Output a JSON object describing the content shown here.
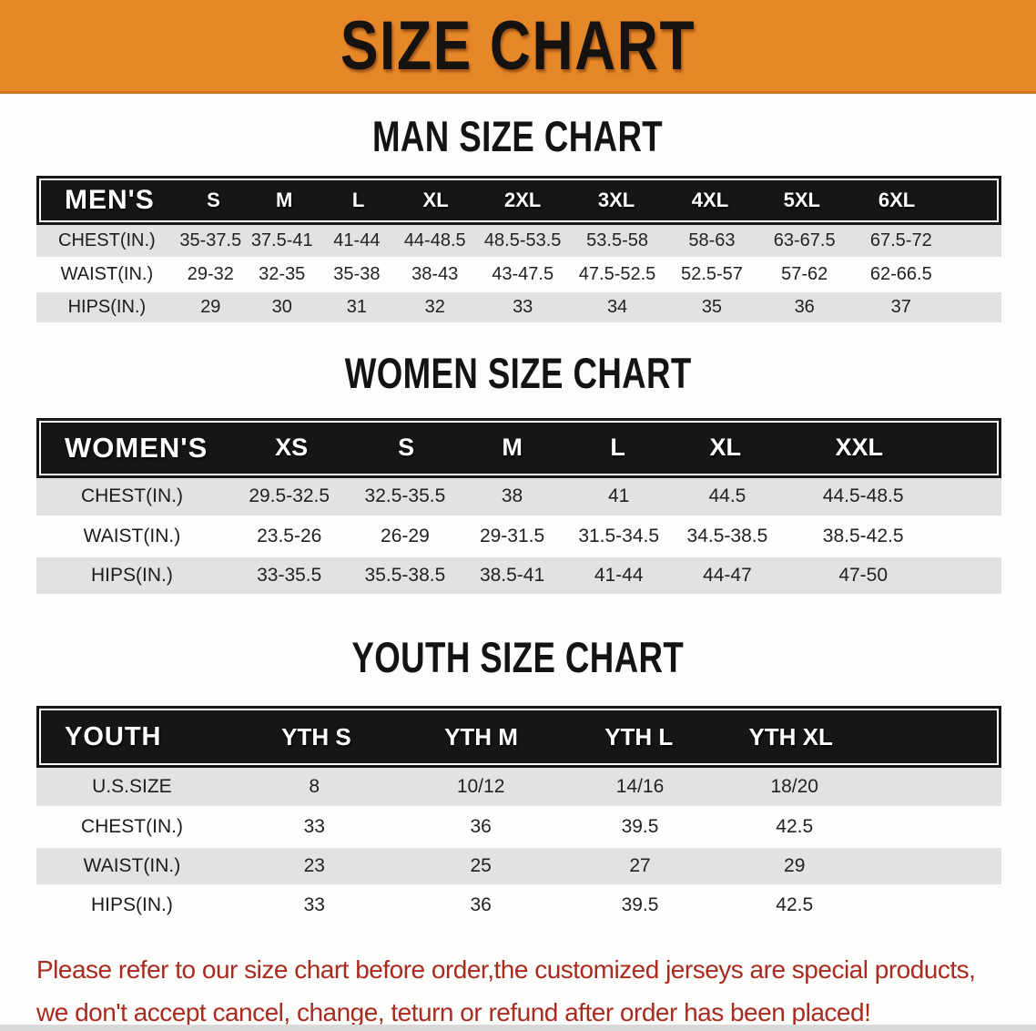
{
  "banner": {
    "title": "SIZE CHART"
  },
  "colors": {
    "banner_bg": "#e68728",
    "header_black": "#161616",
    "row_gray": "#e2e2e2",
    "disclaimer_red": "#a92b20"
  },
  "sections": [
    {
      "heading": "MAN SIZE CHART",
      "table_label": "MEN'S",
      "columns": [
        "S",
        "M",
        "L",
        "XL",
        "2XL",
        "3XL",
        "4XL",
        "5XL",
        "6XL"
      ],
      "rows": [
        {
          "label": "CHEST(IN.)",
          "values": [
            "35-37.5",
            "37.5-41",
            "41-44",
            "44-48.5",
            "48.5-53.5",
            "53.5-58",
            "58-63",
            "63-67.5",
            "67.5-72"
          ]
        },
        {
          "label": "WAIST(IN.)",
          "values": [
            "29-32",
            "32-35",
            "35-38",
            "38-43",
            "43-47.5",
            "47.5-52.5",
            "52.5-57",
            "57-62",
            "62-66.5"
          ]
        },
        {
          "label": "HIPS(IN.)",
          "values": [
            "29",
            "30",
            "31",
            "32",
            "33",
            "34",
            "35",
            "36",
            "37"
          ]
        }
      ]
    },
    {
      "heading": "WOMEN SIZE CHART",
      "table_label": "WOMEN'S",
      "columns": [
        "XS",
        "S",
        "M",
        "L",
        "XL",
        "XXL"
      ],
      "rows": [
        {
          "label": "CHEST(IN.)",
          "values": [
            "29.5-32.5",
            "32.5-35.5",
            "38",
            "41",
            "44.5",
            "44.5-48.5"
          ]
        },
        {
          "label": "WAIST(IN.)",
          "values": [
            "23.5-26",
            "26-29",
            "29-31.5",
            "31.5-34.5",
            "34.5-38.5",
            "38.5-42.5"
          ]
        },
        {
          "label": "HIPS(IN.)",
          "values": [
            "33-35.5",
            "35.5-38.5",
            "38.5-41",
            "41-44",
            "44-47",
            "47-50"
          ]
        }
      ]
    },
    {
      "heading": "YOUTH SIZE CHART",
      "table_label": "YOUTH",
      "columns": [
        "YTH S",
        "YTH M",
        "YTH L",
        "YTH XL"
      ],
      "rows": [
        {
          "label": "U.S.SIZE",
          "values": [
            "8",
            "10/12",
            "14/16",
            "18/20"
          ]
        },
        {
          "label": "CHEST(IN.)",
          "values": [
            "33",
            "36",
            "39.5",
            "42.5"
          ]
        },
        {
          "label": "WAIST(IN.)",
          "values": [
            "23",
            "25",
            "27",
            "29"
          ]
        },
        {
          "label": "HIPS(IN.)",
          "values": [
            "33",
            "36",
            "39.5",
            "42.5"
          ]
        }
      ]
    }
  ],
  "disclaimer": {
    "line1": "Please refer to our size chart before order,the customized jerseys are special products,",
    "line2": "we don't accept cancel, change, teturn or refund after order has been placed!"
  }
}
